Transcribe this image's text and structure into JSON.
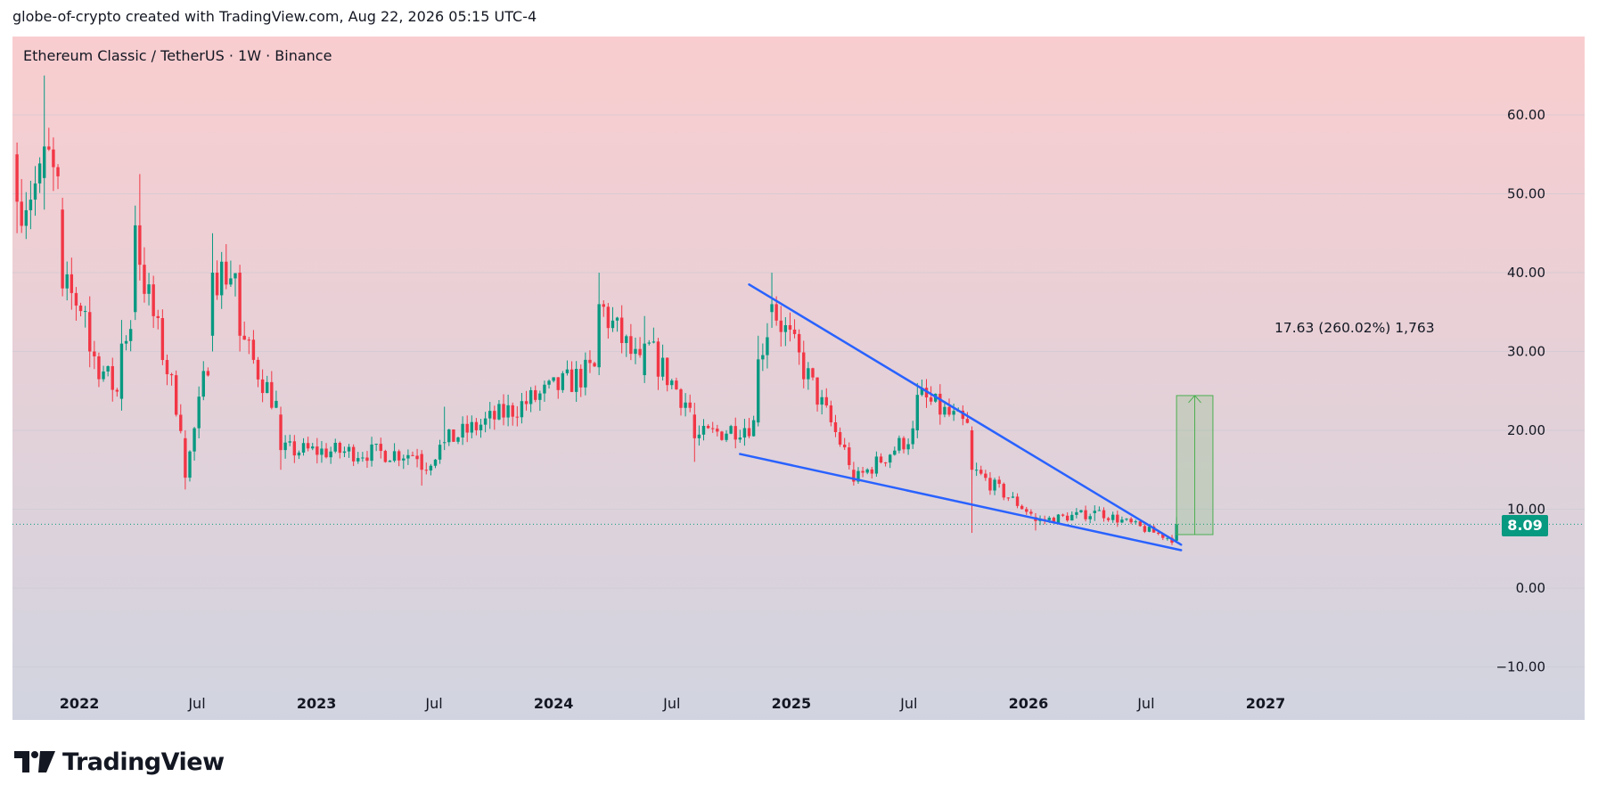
{
  "header": {
    "credit": "globe-of-crypto created with TradingView.com, Aug 22, 2026 05:15 UTC-4"
  },
  "brand": {
    "name": "TradingView",
    "icon": "tradingview-logo-icon"
  },
  "colors": {
    "up": "#089981",
    "down": "#f23645",
    "trendline": "#2962ff",
    "measure_line": "#4caf50",
    "background_top": "#f9cdcf",
    "background_bottom": "#d1d4e0"
  },
  "chart_data": {
    "type": "candlestick",
    "title": "Ethereum Classic / TetherUS · 1W · Binance",
    "symbol": "Ethereum Classic / TetherUS",
    "interval": "1W",
    "exchange": "Binance",
    "last_price": "8.09",
    "y_axis": {
      "ticks": [
        "−10.00",
        "0.00",
        "10.00",
        "20.00",
        "30.00",
        "40.00",
        "50.00",
        "60.00"
      ],
      "values": [
        -10,
        0,
        10,
        20,
        30,
        40,
        50,
        60
      ],
      "ylim": [
        -13,
        70
      ]
    },
    "x_axis": {
      "ticks": [
        {
          "label": "2022",
          "date": "2022-01-01",
          "bold": true
        },
        {
          "label": "Jul",
          "date": "2022-07-01",
          "bold": false
        },
        {
          "label": "2023",
          "date": "2023-01-01",
          "bold": true
        },
        {
          "label": "Jul",
          "date": "2023-07-01",
          "bold": false
        },
        {
          "label": "2024",
          "date": "2024-01-01",
          "bold": true
        },
        {
          "label": "Jul",
          "date": "2024-07-01",
          "bold": false
        },
        {
          "label": "2025",
          "date": "2025-01-01",
          "bold": true
        },
        {
          "label": "Jul",
          "date": "2025-07-01",
          "bold": false
        },
        {
          "label": "2026",
          "date": "2026-01-01",
          "bold": true
        },
        {
          "label": "Jul",
          "date": "2026-07-01",
          "bold": false
        },
        {
          "label": "2027",
          "date": "2027-01-01",
          "bold": true
        }
      ],
      "range": [
        "2021-09-20",
        "2027-05-10"
      ]
    },
    "key_points": [
      {
        "date": "2021-09-27",
        "open": 55.0,
        "high": 56.5,
        "low": 45.0,
        "close": 49.0
      },
      {
        "date": "2021-11-08",
        "open": 52.0,
        "high": 65.0,
        "low": 48.0,
        "close": 56.0
      },
      {
        "date": "2021-12-06",
        "open": 48.0,
        "high": 49.5,
        "low": 37.0,
        "close": 38.0
      },
      {
        "date": "2022-01-17",
        "open": 35.0,
        "high": 37.0,
        "low": 28.0,
        "close": 30.0
      },
      {
        "date": "2022-03-07",
        "open": 24.0,
        "high": 34.0,
        "low": 22.5,
        "close": 31.0
      },
      {
        "date": "2022-03-28",
        "open": 35.0,
        "high": 48.5,
        "low": 34.0,
        "close": 46.0
      },
      {
        "date": "2022-04-04",
        "open": 46.0,
        "high": 52.5,
        "low": 39.0,
        "close": 41.0
      },
      {
        "date": "2022-06-13",
        "open": 19.0,
        "high": 20.0,
        "low": 12.5,
        "close": 14.0
      },
      {
        "date": "2022-07-25",
        "open": 32.0,
        "high": 45.0,
        "low": 30.0,
        "close": 40.0
      },
      {
        "date": "2022-09-05",
        "open": 40.0,
        "high": 41.0,
        "low": 30.0,
        "close": 32.0
      },
      {
        "date": "2022-11-07",
        "open": 22.0,
        "high": 23.0,
        "low": 15.0,
        "close": 17.5
      },
      {
        "date": "2023-06-12",
        "open": 17.0,
        "high": 17.5,
        "low": 13.0,
        "close": 15.0
      },
      {
        "date": "2023-07-17",
        "open": 18.5,
        "high": 23.0,
        "low": 17.5,
        "close": 18.5
      },
      {
        "date": "2024-03-11",
        "open": 28.0,
        "high": 40.0,
        "low": 27.0,
        "close": 36.0
      },
      {
        "date": "2024-05-20",
        "open": 27.0,
        "high": 34.5,
        "low": 26.0,
        "close": 31.0
      },
      {
        "date": "2024-08-05",
        "open": 22.0,
        "high": 23.5,
        "low": 16.0,
        "close": 19.0
      },
      {
        "date": "2024-11-11",
        "open": 21.0,
        "high": 32.0,
        "low": 20.5,
        "close": 29.0
      },
      {
        "date": "2024-12-02",
        "open": 35.0,
        "high": 40.0,
        "low": 33.0,
        "close": 36.0
      },
      {
        "date": "2025-04-07",
        "open": 15.0,
        "high": 16.0,
        "low": 13.0,
        "close": 13.5
      },
      {
        "date": "2025-07-14",
        "open": 20.0,
        "high": 26.0,
        "low": 19.0,
        "close": 24.5
      },
      {
        "date": "2025-10-06",
        "open": 20.0,
        "high": 20.5,
        "low": 7.0,
        "close": 15.0
      },
      {
        "date": "2026-01-12",
        "open": 9.0,
        "high": 9.5,
        "low": 7.3,
        "close": 8.5
      },
      {
        "date": "2026-04-13",
        "open": 9.5,
        "high": 10.5,
        "low": 8.5,
        "close": 9.8
      },
      {
        "date": "2026-08-17",
        "open": 6.0,
        "high": 9.0,
        "low": 5.8,
        "close": 8.09
      }
    ],
    "annotations": {
      "upper_trendline": {
        "from": {
          "date": "2024-10-28",
          "price": 38.5
        },
        "to": {
          "date": "2026-08-24",
          "price": 5.5
        }
      },
      "lower_trendline": {
        "from": {
          "date": "2024-10-14",
          "price": 17.0
        },
        "to": {
          "date": "2026-08-24",
          "price": 4.8
        }
      },
      "measure_box": {
        "from_date": "2026-08-17",
        "to_date": "2026-10-12",
        "low": 6.78,
        "high": 24.41
      },
      "measure_label": "17.63 (260.02%) 1,763"
    },
    "grid": true,
    "last_price_line": true
  }
}
